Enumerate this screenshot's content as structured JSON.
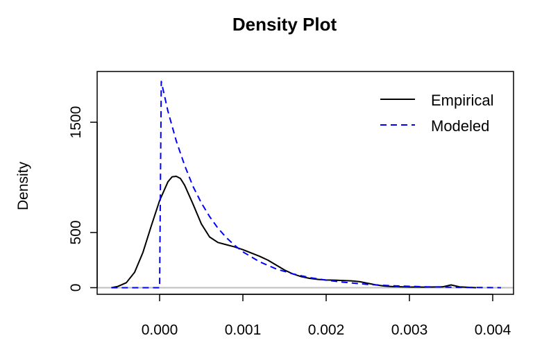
{
  "chart_data": {
    "type": "line",
    "title": "Density Plot",
    "xlabel": "",
    "ylabel": "Density",
    "xlim": [
      -0.00075,
      0.00425
    ],
    "ylim": [
      -60,
      1960
    ],
    "x_ticks": [
      {
        "value": 0.0,
        "label": "0.000"
      },
      {
        "value": 0.001,
        "label": "0.001"
      },
      {
        "value": 0.002,
        "label": "0.002"
      },
      {
        "value": 0.003,
        "label": "0.003"
      },
      {
        "value": 0.004,
        "label": "0.004"
      }
    ],
    "y_ticks": [
      {
        "value": 0,
        "label": "0"
      },
      {
        "value": 500,
        "label": "500"
      },
      {
        "value": 1500,
        "label": "1500"
      }
    ],
    "baseline": {
      "value": 0,
      "color": "#bebebe"
    },
    "legend": {
      "placement": "top-right"
    },
    "series": [
      {
        "name": "Empirical",
        "color": "#000000",
        "dash": "solid",
        "x": [
          -0.00058,
          -0.0005,
          -0.0004,
          -0.0003,
          -0.0002,
          -0.0001,
          0.0,
          0.0001,
          0.00015,
          0.0002,
          0.00025,
          0.0003,
          0.0004,
          0.0005,
          0.0006,
          0.0007,
          0.0008,
          0.0009,
          0.001,
          0.0011,
          0.0012,
          0.0013,
          0.0014,
          0.0015,
          0.0016,
          0.0017,
          0.0018,
          0.0019,
          0.002,
          0.0021,
          0.0022,
          0.0023,
          0.0024,
          0.0025,
          0.0026,
          0.0027,
          0.0028,
          0.003,
          0.0032,
          0.0034,
          0.0035,
          0.0036,
          0.0037,
          0.0038
        ],
        "y": [
          0,
          12,
          45,
          140,
          320,
          560,
          790,
          960,
          1005,
          1010,
          990,
          930,
          760,
          580,
          460,
          410,
          390,
          370,
          345,
          315,
          285,
          250,
          205,
          160,
          125,
          100,
          85,
          75,
          70,
          68,
          65,
          62,
          55,
          40,
          25,
          15,
          10,
          6,
          5,
          8,
          25,
          8,
          4,
          0
        ]
      },
      {
        "name": "Modeled",
        "color": "#0000ff",
        "dash": "dashed",
        "x": [
          -0.00058,
          -1e-05,
          0.0,
          2e-05,
          0.0001,
          0.0002,
          0.0003,
          0.0004,
          0.0005,
          0.0006,
          0.0007,
          0.0008,
          0.0009,
          0.001,
          0.0012,
          0.0014,
          0.0016,
          0.0018,
          0.002,
          0.0022,
          0.0025,
          0.0028,
          0.0032,
          0.0036,
          0.0041
        ],
        "y": [
          0,
          0,
          0,
          1870,
          1600,
          1330,
          1110,
          920,
          770,
          645,
          540,
          455,
          385,
          325,
          235,
          170,
          125,
          92,
          68,
          50,
          30,
          17,
          8,
          3,
          0
        ]
      }
    ]
  }
}
